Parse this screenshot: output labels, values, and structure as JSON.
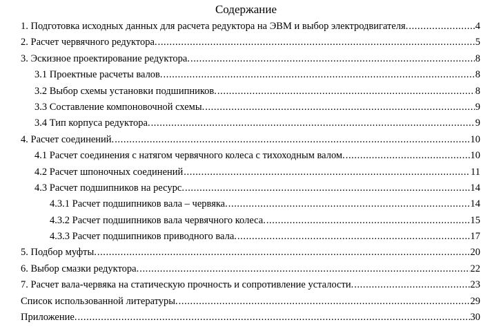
{
  "document": {
    "title": "Содержание"
  },
  "toc": {
    "items": [
      {
        "label": "1. Подготовка исходных данных для расчета редуктора на ЭВМ и выбор электродвигателя.",
        "page": "4",
        "indent": 0
      },
      {
        "label": "2. Расчет червячного редуктора.",
        "page": "5",
        "indent": 0
      },
      {
        "label": "3. Эскизное проектирование редуктора.",
        "page": "8",
        "indent": 0
      },
      {
        "label": "3.1 Проектные расчеты валов.",
        "page": "8",
        "indent": 1
      },
      {
        "label": "3.2 Выбор схемы установки подшипников.",
        "page": "8",
        "indent": 1
      },
      {
        "label": "3.3 Составление компоновочной схемы.",
        "page": "9",
        "indent": 1
      },
      {
        "label": "3.4 Тип корпуса редуктора.",
        "page": "9",
        "indent": 1
      },
      {
        "label": "4. Расчет соединений.",
        "page": "10",
        "indent": 0
      },
      {
        "label": "4.1 Расчет соединения с натягом червячного колеса с тихоходным валом.",
        "page": "10",
        "indent": 1
      },
      {
        "label": "4.2 Расчет шпоночных соединений",
        "page": "11",
        "indent": 1
      },
      {
        "label": "4.3 Расчет подшипников на ресурс.",
        "page": "14",
        "indent": 1
      },
      {
        "label": "4.3.1 Расчет подшипников вала – червяка.",
        "page": "14",
        "indent": 2
      },
      {
        "label": "4.3.2 Расчет подшипников вала червячного колеса.",
        "page": "15",
        "indent": 2
      },
      {
        "label": "4.3.3 Расчет подшипников приводного вала.",
        "page": "17",
        "indent": 2
      },
      {
        "label": "5. Подбор муфты.",
        "page": "20",
        "indent": 0
      },
      {
        "label": "6. Выбор смазки редуктора.",
        "page": "22",
        "indent": 0
      },
      {
        "label": "7. Расчет вала-червяка на статическую прочность и сопротивление усталости.",
        "page": "23",
        "indent": 0
      },
      {
        "label": "Список использованной литературы.",
        "page": "29",
        "indent": 0
      },
      {
        "label": "Приложение.",
        "page": "30",
        "indent": 0
      }
    ]
  },
  "colors": {
    "text": "#000000",
    "background": "#ffffff"
  }
}
